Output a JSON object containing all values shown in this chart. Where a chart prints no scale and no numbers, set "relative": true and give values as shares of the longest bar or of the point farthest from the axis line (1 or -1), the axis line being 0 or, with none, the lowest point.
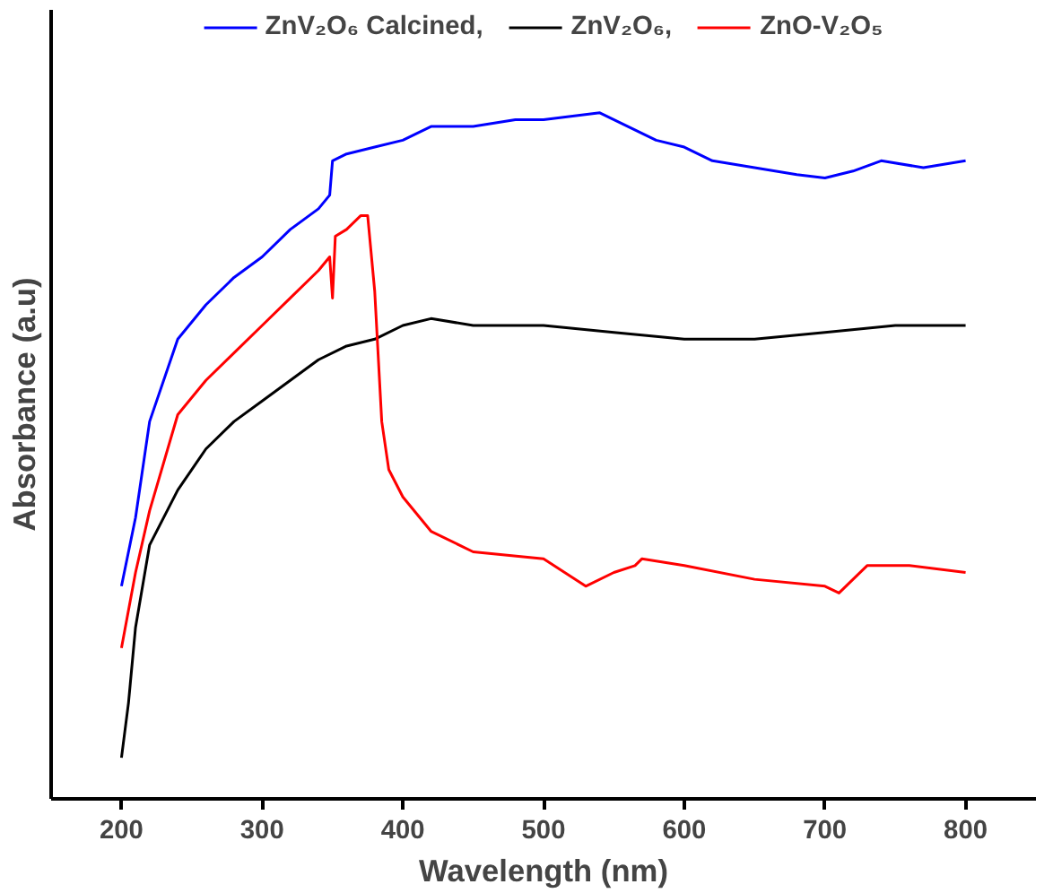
{
  "chart_data": {
    "type": "line",
    "relative": true,
    "xlabel": "Wavelength (nm)",
    "ylabel": "Absorbance (a.u)",
    "xlim": [
      150,
      850
    ],
    "xticks": [
      200,
      300,
      400,
      500,
      600,
      700,
      800
    ],
    "grid": false,
    "legend": "top",
    "marker": "none",
    "line_style": "solid",
    "series": [
      {
        "name": "ZnV₂O₆ Calcined,",
        "color": "#0000ff",
        "x": [
          200,
          210,
          220,
          240,
          260,
          280,
          300,
          320,
          340,
          348,
          350,
          360,
          380,
          400,
          420,
          450,
          480,
          500,
          540,
          560,
          580,
          600,
          620,
          650,
          680,
          700,
          720,
          740,
          770,
          800
        ],
        "values": [
          0.31,
          0.41,
          0.55,
          0.67,
          0.72,
          0.76,
          0.79,
          0.83,
          0.86,
          0.88,
          0.93,
          0.94,
          0.95,
          0.96,
          0.98,
          0.98,
          0.99,
          0.99,
          1.0,
          0.98,
          0.96,
          0.95,
          0.93,
          0.92,
          0.91,
          0.905,
          0.915,
          0.93,
          0.92,
          0.93
        ]
      },
      {
        "name": "ZnV₂O₆,",
        "color": "#000000",
        "x": [
          200,
          205,
          210,
          220,
          240,
          260,
          280,
          300,
          320,
          340,
          360,
          380,
          400,
          420,
          450,
          500,
          550,
          600,
          650,
          700,
          750,
          800
        ],
        "values": [
          0.06,
          0.14,
          0.25,
          0.37,
          0.45,
          0.51,
          0.55,
          0.58,
          0.61,
          0.64,
          0.66,
          0.67,
          0.69,
          0.7,
          0.69,
          0.69,
          0.68,
          0.67,
          0.67,
          0.68,
          0.69,
          0.69
        ]
      },
      {
        "name": "ZnO-V₂O₅",
        "color": "#ff0000",
        "x": [
          200,
          210,
          220,
          240,
          260,
          280,
          300,
          320,
          340,
          348,
          350,
          352,
          360,
          370,
          375,
          380,
          385,
          390,
          400,
          420,
          450,
          500,
          530,
          550,
          565,
          570,
          600,
          650,
          700,
          710,
          720,
          730,
          760,
          800
        ],
        "values": [
          0.22,
          0.33,
          0.42,
          0.56,
          0.61,
          0.65,
          0.69,
          0.73,
          0.77,
          0.79,
          0.73,
          0.82,
          0.83,
          0.85,
          0.85,
          0.74,
          0.55,
          0.48,
          0.44,
          0.39,
          0.36,
          0.35,
          0.31,
          0.33,
          0.34,
          0.35,
          0.34,
          0.32,
          0.31,
          0.3,
          0.32,
          0.34,
          0.34,
          0.33
        ]
      }
    ]
  }
}
